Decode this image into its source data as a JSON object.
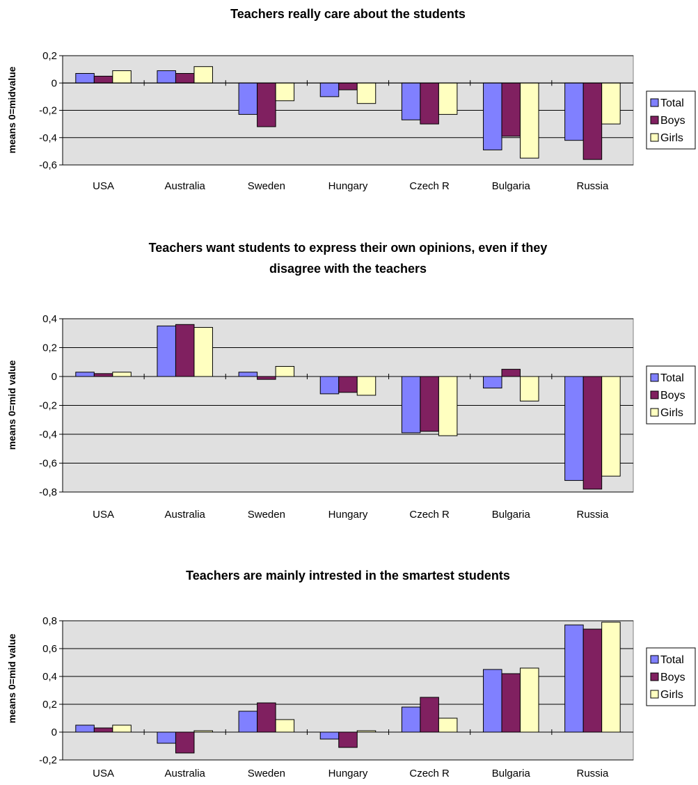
{
  "colors": {
    "Total": "#8080ff",
    "Boys": "#802060",
    "Girls": "#ffffc0",
    "plot_bg": "#e0e0e0",
    "gridline": "#000000"
  },
  "chart_data": [
    {
      "type": "bar",
      "title": "Teachers really care about the students",
      "ylabel": "means 0=midvalue",
      "xlabel": "",
      "categories": [
        "USA",
        "Australia",
        "Sweden",
        "Hungary",
        "Czech R",
        "Bulgaria",
        "Russia"
      ],
      "ylim": [
        -0.6,
        0.2
      ],
      "yticks": [
        "0,2",
        "0",
        "-0,2",
        "-0,4",
        "-0,6"
      ],
      "grid": true,
      "legend": "right",
      "series": [
        {
          "name": "Total",
          "values": [
            0.07,
            0.09,
            -0.23,
            -0.1,
            -0.27,
            -0.49,
            -0.42
          ]
        },
        {
          "name": "Boys",
          "values": [
            0.05,
            0.07,
            -0.32,
            -0.05,
            -0.3,
            -0.39,
            -0.56
          ]
        },
        {
          "name": "Girls",
          "values": [
            0.09,
            0.12,
            -0.13,
            -0.15,
            -0.23,
            -0.55,
            -0.3
          ]
        }
      ]
    },
    {
      "type": "bar",
      "title": "Teachers want students to express their own opinions, even if they disagree with the teachers",
      "title_lines": [
        "Teachers want students to express their own opinions, even if they",
        "disagree with the teachers"
      ],
      "ylabel": "means 0=mid value",
      "xlabel": "",
      "categories": [
        "USA",
        "Australia",
        "Sweden",
        "Hungary",
        "Czech R",
        "Bulgaria",
        "Russia"
      ],
      "ylim": [
        -0.8,
        0.4
      ],
      "yticks": [
        "0,4",
        "0,2",
        "0",
        "-0,2",
        "-0,4",
        "-0,6",
        "-0,8"
      ],
      "grid": true,
      "legend": "right",
      "series": [
        {
          "name": "Total",
          "values": [
            0.03,
            0.35,
            0.03,
            -0.12,
            -0.39,
            -0.08,
            -0.72
          ]
        },
        {
          "name": "Boys",
          "values": [
            0.02,
            0.36,
            -0.02,
            -0.11,
            -0.38,
            0.05,
            -0.78
          ]
        },
        {
          "name": "Girls",
          "values": [
            0.03,
            0.34,
            0.07,
            -0.13,
            -0.41,
            -0.17,
            -0.69
          ]
        }
      ]
    },
    {
      "type": "bar",
      "title": "Teachers are mainly intrested in the smartest students",
      "ylabel": "means 0=mid value",
      "xlabel": "",
      "categories": [
        "USA",
        "Australia",
        "Sweden",
        "Hungary",
        "Czech R",
        "Bulgaria",
        "Russia"
      ],
      "ylim": [
        -0.2,
        0.8
      ],
      "yticks": [
        "0,8",
        "0,6",
        "0,4",
        "0,2",
        "0",
        "-0,2"
      ],
      "grid": true,
      "legend": "right",
      "series": [
        {
          "name": "Total",
          "values": [
            0.05,
            -0.08,
            0.15,
            -0.05,
            0.18,
            0.45,
            0.77
          ]
        },
        {
          "name": "Boys",
          "values": [
            0.03,
            -0.15,
            0.21,
            -0.11,
            0.25,
            0.42,
            0.74
          ]
        },
        {
          "name": "Girls",
          "values": [
            0.05,
            0.01,
            0.09,
            0.01,
            0.1,
            0.46,
            0.79
          ]
        }
      ]
    }
  ]
}
